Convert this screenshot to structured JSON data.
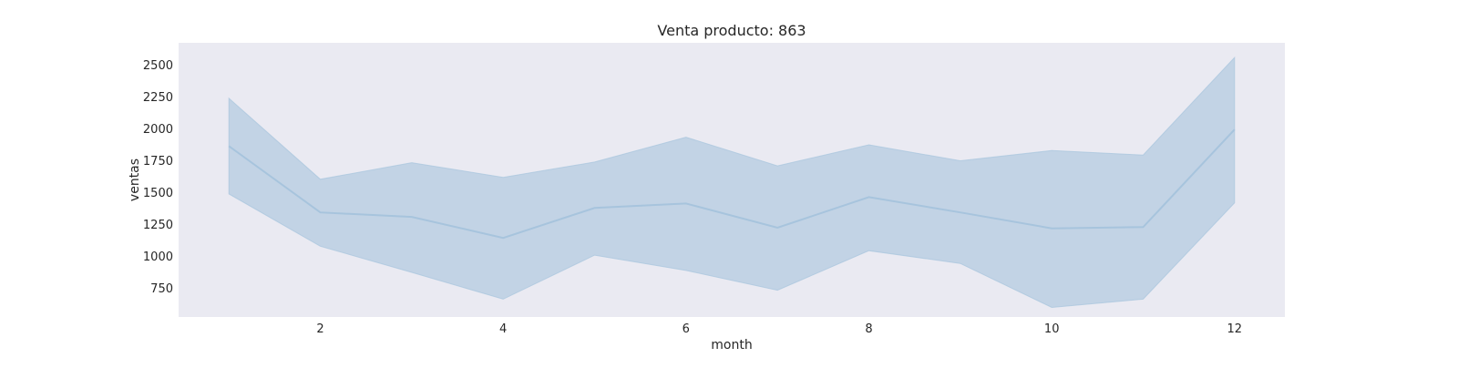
{
  "chart_data": {
    "type": "line",
    "title": "Venta producto: 863",
    "xlabel": "month",
    "ylabel": "ventas",
    "xlim": [
      0.45,
      12.55
    ],
    "ylim": [
      520,
      2670
    ],
    "x_ticks": [
      2,
      4,
      6,
      8,
      10,
      12
    ],
    "y_ticks": [
      750,
      1000,
      1250,
      1500,
      1750,
      2000,
      2250,
      2500
    ],
    "grid": false,
    "series": [
      {
        "x": [
          1,
          2,
          3,
          4,
          5,
          6,
          7,
          8,
          9,
          10,
          11,
          12
        ],
        "values": [
          1860,
          1340,
          1305,
          1140,
          1375,
          1410,
          1220,
          1460,
          1340,
          1215,
          1225,
          1990
        ],
        "ci_lower": [
          1485,
          1075,
          870,
          660,
          1005,
          885,
          730,
          1040,
          940,
          595,
          660,
          1415
        ],
        "ci_upper": [
          2235,
          1600,
          1730,
          1615,
          1735,
          1930,
          1705,
          1870,
          1745,
          1825,
          1790,
          2555
        ]
      }
    ],
    "colors": {
      "line": "#a7c4dd",
      "band": "#c2d3e5",
      "plot_background": "#eaeaf2"
    }
  }
}
